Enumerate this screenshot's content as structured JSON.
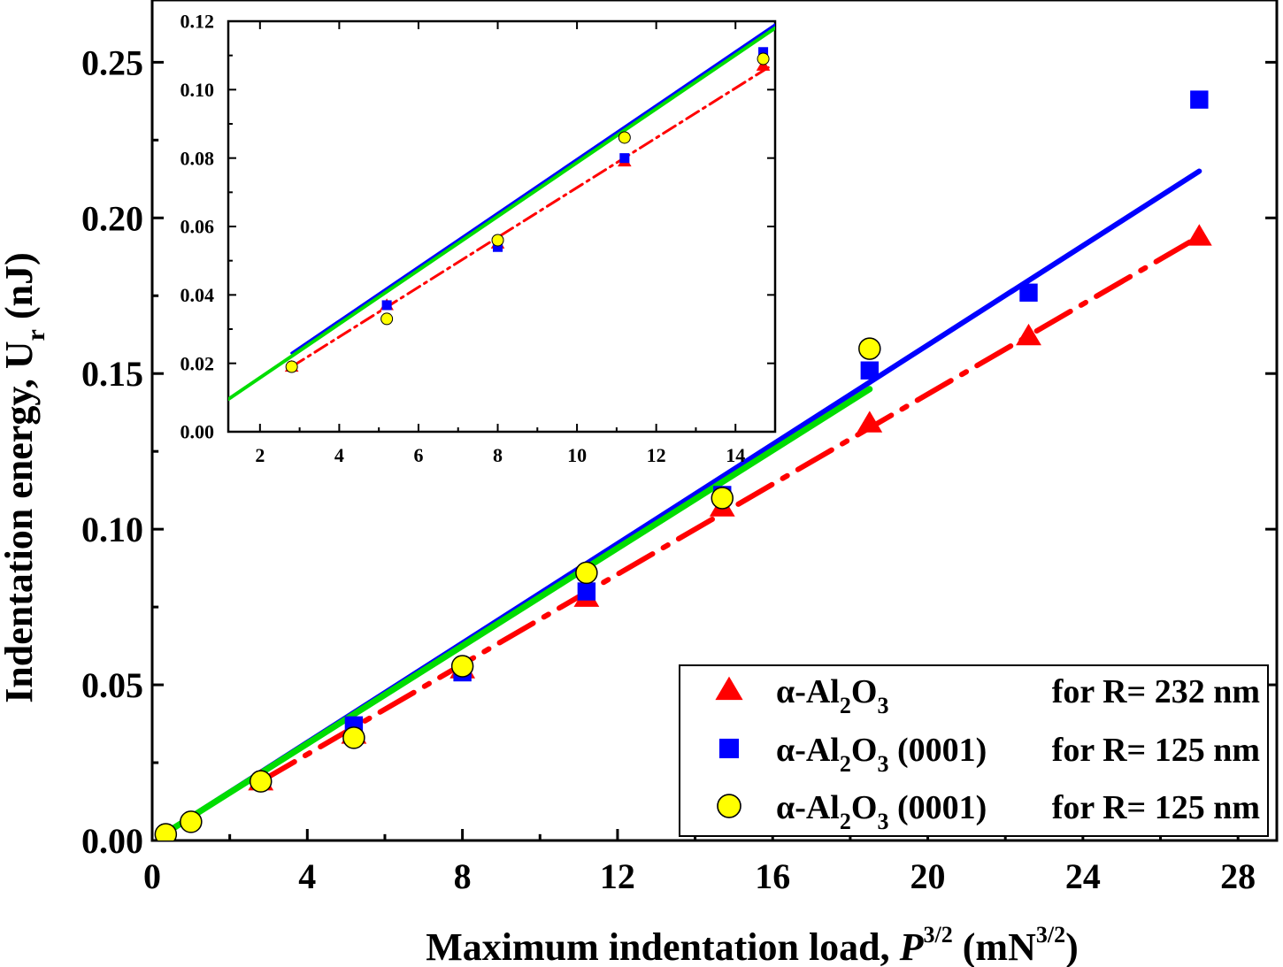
{
  "chart_data": [
    {
      "id": "main",
      "type": "scatter",
      "title": "",
      "xlabel": {
        "main": "Maximum indentation load, ",
        "italic": "P",
        "sup1": "3/2",
        "mid": " (mN",
        "sup2": "3/2",
        "end": ")"
      },
      "ylabel": {
        "main": "Indentation energy, U",
        "sub": "r",
        "end": " (nJ)"
      },
      "xlim": [
        0,
        29
      ],
      "ylim": [
        0,
        0.27
      ],
      "xticks": [
        0,
        4,
        8,
        12,
        16,
        20,
        24,
        28
      ],
      "xtick_labels": [
        "0",
        "4",
        "8",
        "12",
        "16",
        "20",
        "24",
        "28"
      ],
      "yticks": [
        0.0,
        0.05,
        0.1,
        0.15,
        0.2,
        0.25
      ],
      "ytick_labels": [
        "0.00",
        "0.05",
        "0.10",
        "0.15",
        "0.20",
        "0.25"
      ],
      "series": [
        {
          "name": "alumina-232",
          "marker": "triangle",
          "color": "#ff0000",
          "x": [
            2.8,
            5.2,
            8.0,
            11.2,
            14.7,
            18.5,
            22.6,
            27.0
          ],
          "y": [
            0.019,
            0.034,
            0.055,
            0.078,
            0.107,
            0.134,
            0.162,
            0.194
          ]
        },
        {
          "name": "alumina-0001-blue",
          "marker": "square",
          "color": "#0000ff",
          "x": [
            5.2,
            8.0,
            11.2,
            14.7,
            18.5,
            22.6,
            27.0
          ],
          "y": [
            0.037,
            0.054,
            0.08,
            0.111,
            0.151,
            0.176,
            0.238
          ]
        },
        {
          "name": "alumina-0001-yellow",
          "marker": "circle",
          "color": "#ffff00",
          "x": [
            0.35,
            1.0,
            2.8,
            5.2,
            8.0,
            11.2,
            14.7,
            18.5
          ],
          "y": [
            0.002,
            0.006,
            0.019,
            0.033,
            0.056,
            0.086,
            0.11,
            0.158
          ]
        }
      ],
      "fits": [
        {
          "name": "fit-red",
          "style": "dash-dot",
          "color": "#ff0000",
          "x": [
            2.8,
            27.0
          ],
          "y": [
            0.019,
            0.194
          ]
        },
        {
          "name": "fit-blue",
          "style": "solid",
          "color": "#0000ff",
          "x": [
            0.3,
            27.0
          ],
          "y": [
            0.002,
            0.215
          ]
        },
        {
          "name": "fit-green",
          "style": "solid",
          "color": "#00dd00",
          "x": [
            0.3,
            18.5
          ],
          "y": [
            0.002,
            0.145
          ]
        }
      ],
      "legend": {
        "position": "bottom-right",
        "entries": [
          {
            "label_pre": "α-Al",
            "sub1": "2",
            "mid": "O",
            "sub2": "3",
            "suffix": "",
            "cond": "for R= 232 nm"
          },
          {
            "label_pre": "α-Al",
            "sub1": "2",
            "mid": "O",
            "sub2": "3",
            "suffix": " (0001)",
            "cond": "for R= 125 nm"
          },
          {
            "label_pre": "α-Al",
            "sub1": "2",
            "mid": "O",
            "sub2": "3",
            "suffix": " (0001)",
            "cond": "for R= 125 nm"
          }
        ]
      }
    },
    {
      "id": "inset",
      "type": "scatter",
      "xlim": [
        1.2,
        15.0
      ],
      "ylim": [
        0,
        0.12
      ],
      "xticks": [
        2,
        4,
        6,
        8,
        10,
        12,
        14
      ],
      "xtick_labels": [
        "2",
        "4",
        "6",
        "8",
        "10",
        "12",
        "14"
      ],
      "yticks": [
        0.0,
        0.02,
        0.04,
        0.06,
        0.08,
        0.1,
        0.12
      ],
      "ytick_labels": [
        "0.00",
        "0.02",
        "0.04",
        "0.06",
        "0.08",
        "0.10",
        "0.12"
      ],
      "series": [
        {
          "name": "inset-red",
          "marker": "triangle",
          "color": "#ff0000",
          "x": [
            2.8,
            5.2,
            8.0,
            11.2,
            14.7
          ],
          "y": [
            0.019,
            0.037,
            0.055,
            0.079,
            0.107
          ]
        },
        {
          "name": "inset-blue",
          "marker": "square",
          "color": "#0000ff",
          "x": [
            5.2,
            8.0,
            11.2,
            14.7
          ],
          "y": [
            0.037,
            0.054,
            0.08,
            0.111
          ]
        },
        {
          "name": "inset-yellow",
          "marker": "circle",
          "color": "#ffff00",
          "x": [
            2.8,
            5.2,
            8.0,
            11.2,
            14.7
          ],
          "y": [
            0.019,
            0.033,
            0.056,
            0.086,
            0.109
          ]
        }
      ],
      "fits": [
        {
          "name": "inset-fit-red",
          "style": "dash-dot",
          "color": "#ff0000",
          "x": [
            2.8,
            14.9
          ],
          "y": [
            0.019,
            0.107
          ]
        },
        {
          "name": "inset-fit-blue",
          "style": "solid",
          "color": "#0000ff",
          "x": [
            2.8,
            15.0
          ],
          "y": [
            0.023,
            0.119
          ]
        },
        {
          "name": "inset-fit-green",
          "style": "solid",
          "color": "#00dd00",
          "x": [
            1.2,
            15.0
          ],
          "y": [
            0.0095,
            0.118
          ]
        }
      ]
    }
  ]
}
